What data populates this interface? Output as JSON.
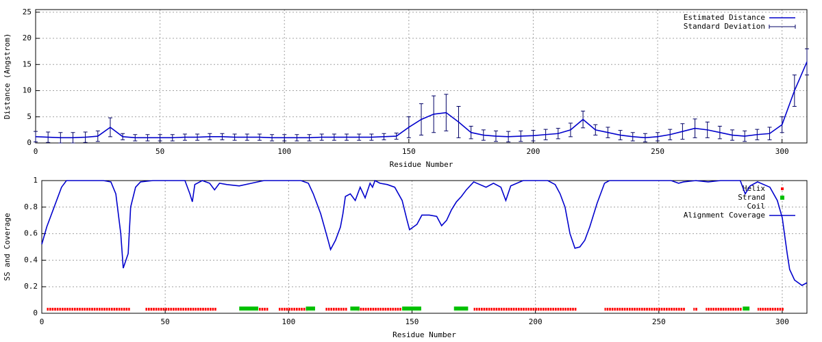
{
  "chart_data": [
    {
      "type": "errorline",
      "xlabel": "Residue Number",
      "ylabel": "Distance (Angstrom)",
      "xlim": [
        0,
        310
      ],
      "ylim": [
        0,
        25.5
      ],
      "xticks": [
        0,
        50,
        100,
        150,
        200,
        250,
        300
      ],
      "yticks": [
        0,
        5,
        10,
        15,
        20,
        25
      ],
      "grid": true,
      "legend": "top-right",
      "x": [
        0,
        5,
        10,
        15,
        20,
        25,
        30,
        35,
        40,
        45,
        50,
        55,
        60,
        65,
        70,
        75,
        80,
        85,
        90,
        95,
        100,
        105,
        110,
        115,
        120,
        125,
        130,
        135,
        140,
        145,
        150,
        155,
        160,
        165,
        170,
        175,
        180,
        185,
        190,
        195,
        200,
        205,
        210,
        215,
        220,
        225,
        230,
        235,
        240,
        245,
        250,
        255,
        260,
        265,
        270,
        275,
        280,
        285,
        290,
        295,
        300,
        305,
        310
      ],
      "series": [
        {
          "name": "Estimated Distance",
          "color": "#0000cc",
          "values": [
            1.2,
            1.1,
            1.0,
            1.0,
            1.1,
            1.3,
            3.0,
            1.2,
            1.0,
            1.0,
            1.0,
            1.0,
            1.1,
            1.1,
            1.2,
            1.2,
            1.1,
            1.1,
            1.1,
            1.0,
            1.0,
            1.0,
            1.0,
            1.1,
            1.1,
            1.1,
            1.1,
            1.1,
            1.2,
            1.3,
            3.0,
            4.5,
            5.5,
            5.8,
            4.0,
            2.0,
            1.5,
            1.3,
            1.2,
            1.3,
            1.4,
            1.6,
            1.8,
            2.5,
            4.5,
            2.5,
            2.0,
            1.5,
            1.2,
            1.0,
            1.2,
            1.6,
            2.2,
            2.8,
            2.5,
            2.0,
            1.5,
            1.3,
            1.6,
            1.8,
            3.5,
            10,
            15.5
          ]
        },
        {
          "name": "Standard Deviation",
          "color": "#000066",
          "errors": [
            1.0,
            1.0,
            1.0,
            1.0,
            1.0,
            1.0,
            1.8,
            0.6,
            0.6,
            0.6,
            0.6,
            0.6,
            0.6,
            0.6,
            0.6,
            0.6,
            0.6,
            0.6,
            0.6,
            0.6,
            0.6,
            0.6,
            0.6,
            0.6,
            0.6,
            0.6,
            0.6,
            0.6,
            0.6,
            0.6,
            2.0,
            3.0,
            3.5,
            3.5,
            3.0,
            1.2,
            1.0,
            1.0,
            1.0,
            1.0,
            1.0,
            1.0,
            1.0,
            1.3,
            1.6,
            1.0,
            1.0,
            0.9,
            0.8,
            0.8,
            0.8,
            1.0,
            1.5,
            1.8,
            1.5,
            1.2,
            1.0,
            1.0,
            1.0,
            1.2,
            1.5,
            3.0,
            2.5
          ]
        }
      ]
    },
    {
      "type": "sscoverage",
      "xlabel": "Residue Number",
      "ylabel": "SS and Coverage",
      "xlim": [
        0,
        310
      ],
      "ylim": [
        0,
        1
      ],
      "xticks": [
        0,
        50,
        100,
        150,
        200,
        250,
        300
      ],
      "yticks": [
        0,
        0.2,
        0.4,
        0.6,
        0.8,
        1
      ],
      "grid": true,
      "legend": "top-right",
      "series": [
        {
          "name": "Helix",
          "color": "#ff0000",
          "y": 0.03,
          "segments": [
            [
              2,
              35
            ],
            [
              42,
              70
            ],
            [
              88,
              91
            ],
            [
              96,
              107
            ],
            [
              115,
              123
            ],
            [
              128,
              145
            ],
            [
              175,
              216
            ],
            [
              228,
              260
            ],
            [
              264,
              265
            ],
            [
              269,
              283
            ],
            [
              290,
              300
            ]
          ]
        },
        {
          "name": "Strand",
          "color": "#00c000",
          "y": 0.03,
          "segments": [
            [
              80,
              87
            ],
            [
              107,
              110
            ],
            [
              125,
              128
            ],
            [
              146,
              153
            ],
            [
              167,
              172
            ],
            [
              284,
              286
            ]
          ]
        },
        {
          "name": "Coil",
          "color": "#000000",
          "y": 0.03,
          "segments": []
        },
        {
          "name": "Alignment Coverage",
          "color": "#0000cc",
          "x": [
            0,
            2,
            5,
            8,
            10,
            15,
            20,
            25,
            28,
            30,
            32,
            33,
            35,
            36,
            38,
            40,
            45,
            55,
            58,
            60,
            61,
            62,
            65,
            68,
            70,
            72,
            75,
            80,
            85,
            90,
            100,
            105,
            108,
            110,
            113,
            116,
            117,
            119,
            121,
            122,
            123,
            125,
            127,
            129,
            131,
            133,
            134,
            135,
            137,
            140,
            143,
            146,
            148,
            149,
            152,
            154,
            157,
            160,
            162,
            164,
            166,
            168,
            170,
            172,
            175,
            180,
            183,
            186,
            188,
            190,
            195,
            200,
            205,
            208,
            210,
            212,
            214,
            216,
            218,
            220,
            222,
            225,
            228,
            230,
            240,
            250,
            255,
            258,
            260,
            265,
            270,
            275,
            280,
            283,
            285,
            287,
            290,
            295,
            298,
            300,
            302,
            303,
            305,
            308,
            310
          ],
          "values": [
            0.52,
            0.65,
            0.8,
            0.95,
            1,
            1,
            1,
            1,
            0.99,
            0.9,
            0.6,
            0.34,
            0.45,
            0.8,
            0.95,
            0.99,
            1,
            1,
            1,
            0.9,
            0.84,
            0.97,
            1,
            0.98,
            0.93,
            0.98,
            0.97,
            0.96,
            0.98,
            1,
            1,
            1,
            0.98,
            0.9,
            0.75,
            0.55,
            0.48,
            0.55,
            0.65,
            0.75,
            0.88,
            0.9,
            0.85,
            0.95,
            0.87,
            0.98,
            0.95,
            1,
            0.98,
            0.97,
            0.95,
            0.85,
            0.7,
            0.63,
            0.67,
            0.74,
            0.74,
            0.73,
            0.66,
            0.7,
            0.78,
            0.84,
            0.88,
            0.93,
            0.99,
            0.95,
            0.98,
            0.95,
            0.85,
            0.96,
            1,
            1,
            1,
            0.97,
            0.9,
            0.8,
            0.6,
            0.49,
            0.5,
            0.55,
            0.65,
            0.83,
            0.98,
            1,
            1,
            1,
            1,
            0.98,
            0.99,
            1,
            0.99,
            1,
            1,
            1,
            0.9,
            0.96,
            0.99,
            0.95,
            0.85,
            0.72,
            0.45,
            0.33,
            0.25,
            0.21,
            0.23
          ]
        }
      ]
    }
  ]
}
